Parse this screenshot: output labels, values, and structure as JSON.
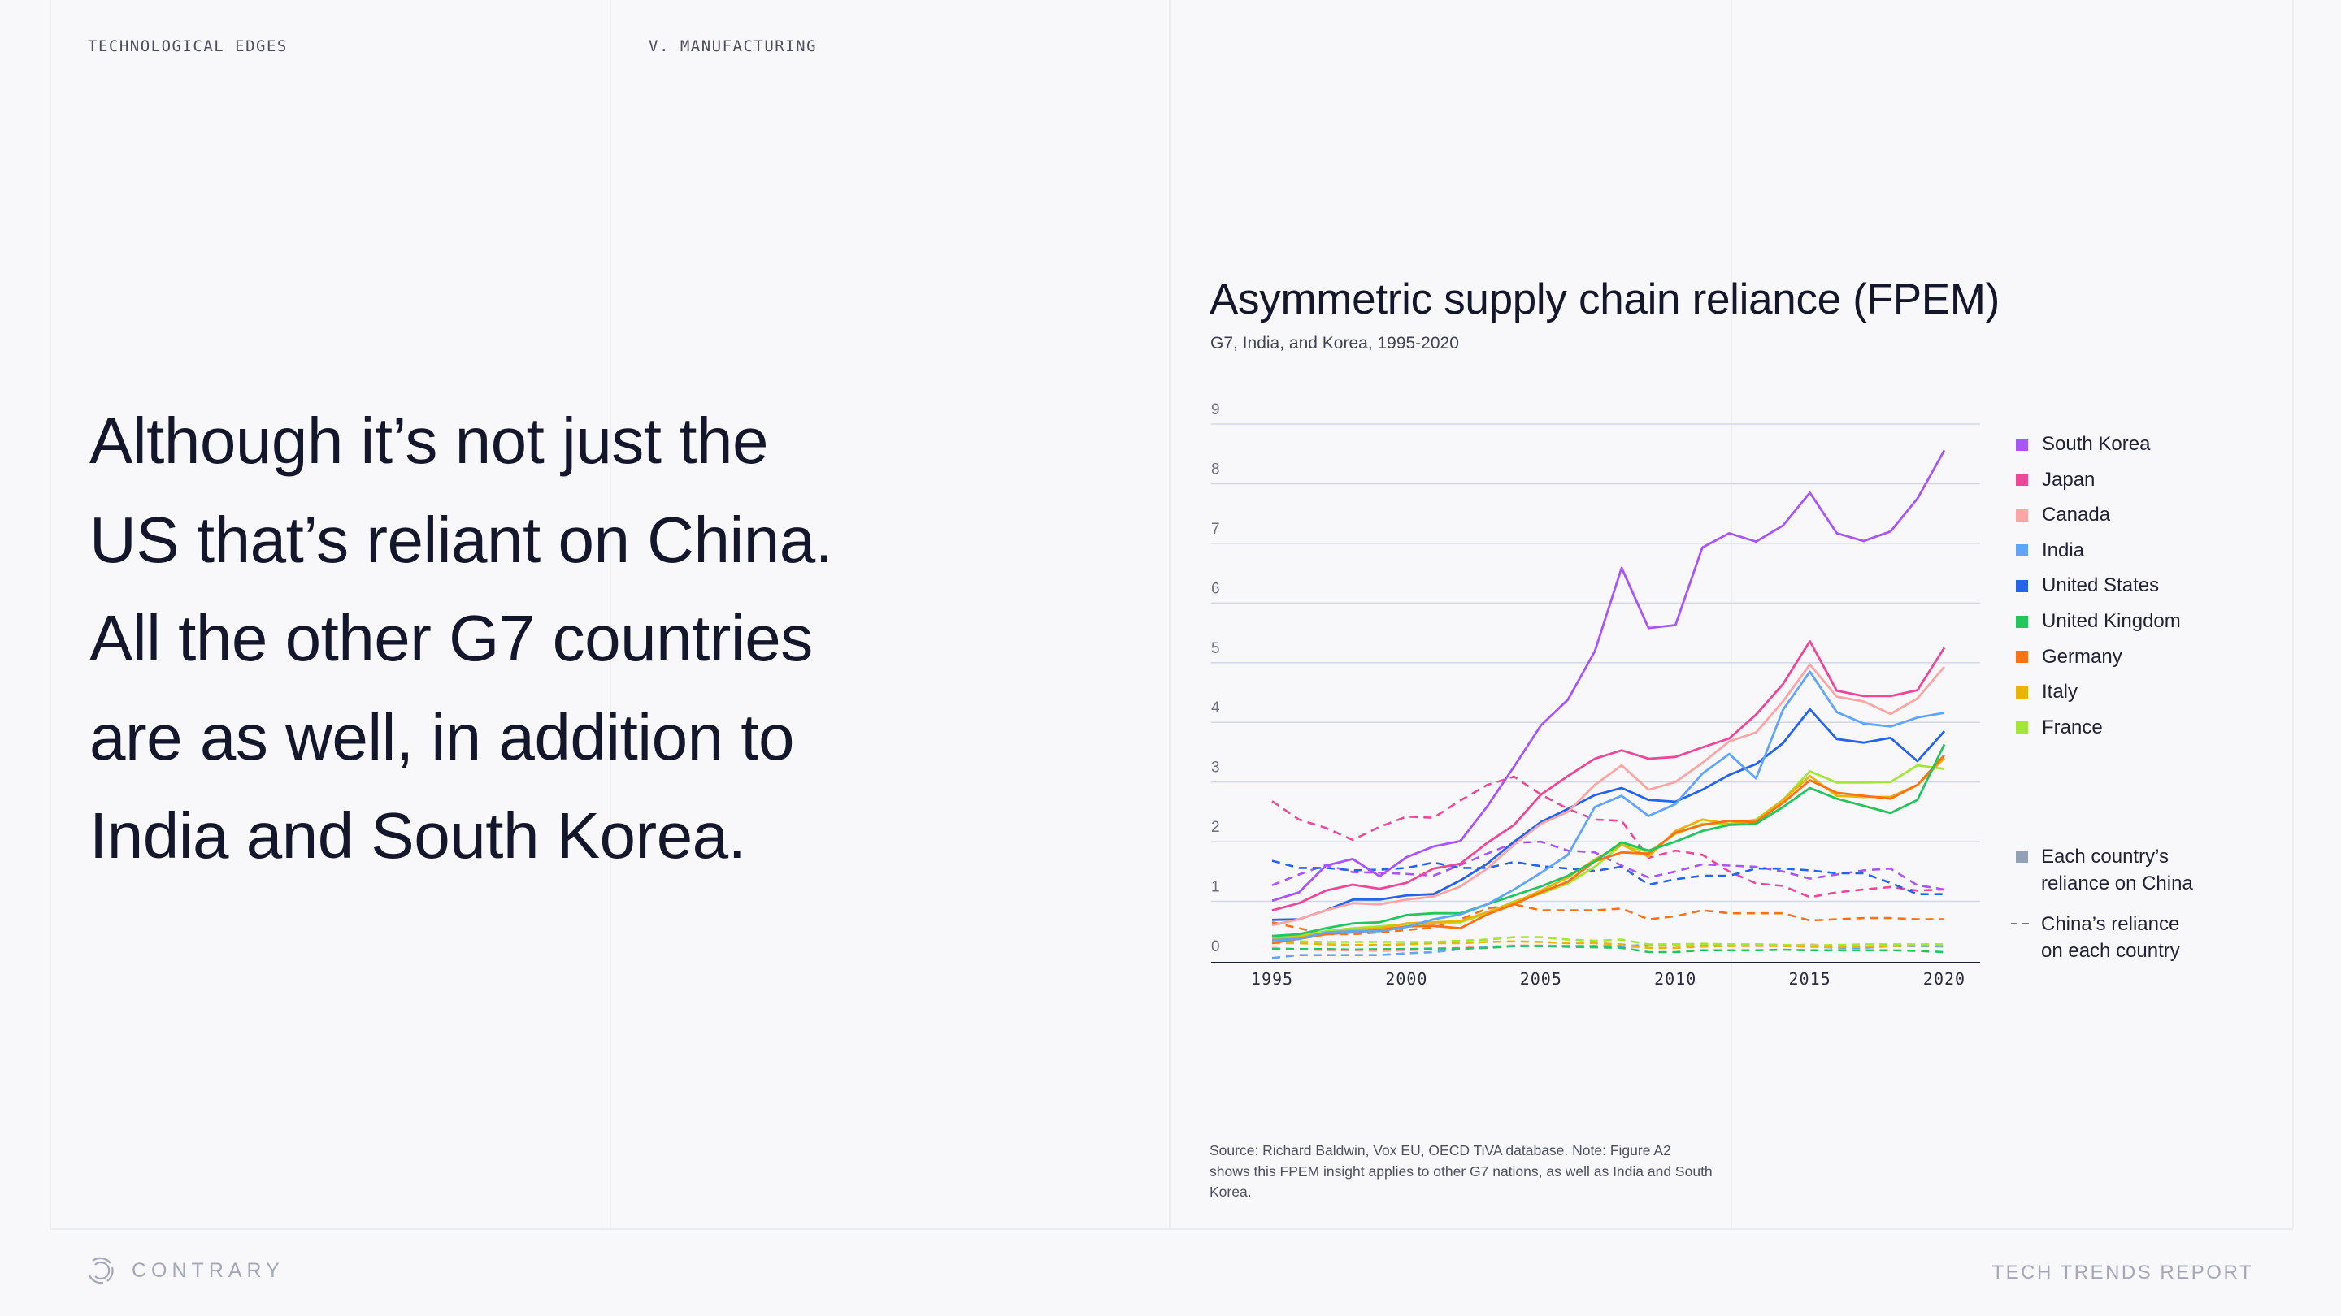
{
  "header": {
    "section_left": "TECHNOLOGICAL EDGES",
    "section_right": "V. MANUFACTURING"
  },
  "headline": {
    "lines": [
      "Although it’s not just the",
      "US that’s reliant on China.",
      "All the other G7 countries",
      "are as well, in addition to",
      "India and South Korea."
    ]
  },
  "footer": {
    "brand": "CONTRARY",
    "report": "TECH TRENDS REPORT"
  },
  "chart_data": {
    "type": "line",
    "title": "Asymmetric supply chain reliance (FPEM)",
    "subtitle": "G7, India, and Korea, 1995-2020",
    "xlabel": "",
    "ylabel": "",
    "x": [
      1995,
      1996,
      1997,
      1998,
      1999,
      2000,
      2001,
      2002,
      2003,
      2004,
      2005,
      2006,
      2007,
      2008,
      2009,
      2010,
      2011,
      2012,
      2013,
      2014,
      2015,
      2016,
      2017,
      2018,
      2019,
      2020
    ],
    "xticks": [
      "1995",
      "2000",
      "2005",
      "2010",
      "2015",
      "2020"
    ],
    "yticks": [
      "0",
      "1",
      "2",
      "3",
      "4",
      "5",
      "6",
      "7",
      "8",
      "9"
    ],
    "ylim": [
      0,
      9
    ],
    "xlim": [
      1995,
      2020
    ],
    "grid": true,
    "legend_position": "right",
    "legend": {
      "each_country_label": "Each country’s reliance on China",
      "each_country_lines": [
        "Each country’s",
        "reliance on China"
      ],
      "china_label": "China’s reliance on each country",
      "china_lines": [
        "China’s reliance",
        "on each country"
      ],
      "each_country_color": "#94a0b4"
    },
    "series": [
      {
        "name": "South Korea",
        "color": "#a855f7",
        "values": [
          1.01,
          1.15,
          1.6,
          1.71,
          1.42,
          1.74,
          1.92,
          2.01,
          2.59,
          3.26,
          3.95,
          4.38,
          5.19,
          6.59,
          5.58,
          5.63,
          6.93,
          7.17,
          7.03,
          7.3,
          7.85,
          7.17,
          7.04,
          7.2,
          7.75,
          8.56
        ],
        "china_values": [
          1.27,
          1.45,
          1.61,
          1.49,
          1.48,
          1.46,
          1.43,
          1.61,
          1.8,
          1.98,
          2.0,
          1.85,
          1.82,
          1.6,
          1.4,
          1.5,
          1.62,
          1.6,
          1.58,
          1.5,
          1.38,
          1.45,
          1.52,
          1.55,
          1.27,
          1.2
        ]
      },
      {
        "name": "Japan",
        "color": "#ec4899",
        "values": [
          0.85,
          0.97,
          1.18,
          1.28,
          1.21,
          1.31,
          1.55,
          1.63,
          1.98,
          2.28,
          2.79,
          3.1,
          3.39,
          3.53,
          3.39,
          3.42,
          3.58,
          3.73,
          4.13,
          4.64,
          5.36,
          4.53,
          4.44,
          4.44,
          4.54,
          5.25
        ],
        "china_values": [
          2.68,
          2.37,
          2.23,
          2.03,
          2.25,
          2.42,
          2.4,
          2.69,
          2.95,
          3.09,
          2.79,
          2.55,
          2.37,
          2.35,
          1.73,
          1.85,
          1.78,
          1.5,
          1.3,
          1.26,
          1.07,
          1.15,
          1.2,
          1.24,
          1.18,
          1.2
        ]
      },
      {
        "name": "Canada",
        "color": "#fca5a5",
        "values": [
          0.6,
          0.7,
          0.85,
          0.97,
          0.95,
          1.03,
          1.08,
          1.25,
          1.55,
          1.95,
          2.3,
          2.5,
          2.95,
          3.28,
          2.87,
          3.0,
          3.32,
          3.68,
          3.83,
          4.35,
          4.97,
          4.43,
          4.35,
          4.14,
          4.4,
          4.93
        ],
        "china_values": [
          0.22,
          0.2,
          0.18,
          0.18,
          0.17,
          0.18,
          0.2,
          0.22,
          0.24,
          0.26,
          0.26,
          0.25,
          0.25,
          0.25,
          0.22,
          0.22,
          0.24,
          0.25,
          0.25,
          0.25,
          0.28,
          0.24,
          0.22,
          0.25,
          0.25,
          0.24
        ]
      },
      {
        "name": "India",
        "color": "#60a5fa",
        "values": [
          0.35,
          0.37,
          0.48,
          0.5,
          0.5,
          0.57,
          0.7,
          0.78,
          0.95,
          1.2,
          1.48,
          1.78,
          2.58,
          2.77,
          2.43,
          2.63,
          3.14,
          3.47,
          3.06,
          4.21,
          4.85,
          4.17,
          3.98,
          3.93,
          4.08,
          4.16
        ],
        "china_values": [
          0.05,
          0.1,
          0.1,
          0.1,
          0.1,
          0.13,
          0.15,
          0.2,
          0.23,
          0.25,
          0.25,
          0.25,
          0.25,
          0.25,
          0.27,
          0.28,
          0.28,
          0.27,
          0.28,
          0.27,
          0.25,
          0.22,
          0.22,
          0.25,
          0.25,
          0.25
        ]
      },
      {
        "name": "United States",
        "color": "#2563eb",
        "values": [
          0.69,
          0.7,
          0.85,
          1.03,
          1.03,
          1.1,
          1.12,
          1.35,
          1.63,
          2.0,
          2.33,
          2.55,
          2.78,
          2.9,
          2.7,
          2.67,
          2.87,
          3.12,
          3.3,
          3.65,
          4.22,
          3.72,
          3.66,
          3.74,
          3.35,
          3.85
        ],
        "china_values": [
          1.68,
          1.56,
          1.56,
          1.52,
          1.53,
          1.56,
          1.65,
          1.56,
          1.56,
          1.66,
          1.59,
          1.55,
          1.51,
          1.58,
          1.28,
          1.37,
          1.43,
          1.43,
          1.55,
          1.55,
          1.52,
          1.47,
          1.47,
          1.31,
          1.12,
          1.12
        ]
      },
      {
        "name": "United Kingdom",
        "color": "#22c55e",
        "values": [
          0.42,
          0.45,
          0.55,
          0.63,
          0.65,
          0.77,
          0.8,
          0.8,
          0.95,
          1.1,
          1.25,
          1.43,
          1.67,
          1.99,
          1.85,
          2.0,
          2.18,
          2.28,
          2.3,
          2.58,
          2.9,
          2.72,
          2.6,
          2.48,
          2.7,
          3.63
        ],
        "china_values": [
          0.2,
          0.2,
          0.2,
          0.19,
          0.2,
          0.2,
          0.21,
          0.21,
          0.22,
          0.25,
          0.25,
          0.24,
          0.23,
          0.22,
          0.15,
          0.15,
          0.18,
          0.18,
          0.18,
          0.19,
          0.18,
          0.18,
          0.18,
          0.18,
          0.17,
          0.15
        ]
      },
      {
        "name": "Germany",
        "color": "#f97316",
        "values": [
          0.3,
          0.37,
          0.45,
          0.48,
          0.52,
          0.58,
          0.59,
          0.55,
          0.78,
          0.95,
          1.15,
          1.33,
          1.67,
          1.82,
          1.8,
          2.15,
          2.28,
          2.35,
          2.33,
          2.65,
          3.03,
          2.82,
          2.77,
          2.72,
          2.95,
          3.45
        ],
        "china_values": [
          0.65,
          0.55,
          0.45,
          0.45,
          0.48,
          0.52,
          0.56,
          0.7,
          0.88,
          0.95,
          0.85,
          0.85,
          0.85,
          0.88,
          0.7,
          0.75,
          0.85,
          0.8,
          0.8,
          0.8,
          0.68,
          0.7,
          0.72,
          0.72,
          0.7,
          0.7
        ]
      },
      {
        "name": "Italy",
        "color": "#eab308",
        "values": [
          0.38,
          0.4,
          0.47,
          0.52,
          0.55,
          0.63,
          0.65,
          0.67,
          0.82,
          0.98,
          1.18,
          1.4,
          1.7,
          1.95,
          1.75,
          2.18,
          2.37,
          2.3,
          2.35,
          2.7,
          3.1,
          2.77,
          2.75,
          2.75,
          2.95,
          3.4
        ],
        "china_values": [
          0.3,
          0.3,
          0.28,
          0.27,
          0.27,
          0.28,
          0.3,
          0.3,
          0.32,
          0.33,
          0.32,
          0.3,
          0.3,
          0.28,
          0.22,
          0.22,
          0.25,
          0.25,
          0.26,
          0.25,
          0.24,
          0.23,
          0.24,
          0.25,
          0.26,
          0.26
        ]
      },
      {
        "name": "France",
        "color": "#a3e635",
        "values": [
          0.4,
          0.42,
          0.5,
          0.55,
          0.58,
          0.62,
          0.63,
          0.65,
          0.8,
          1.0,
          1.13,
          1.3,
          1.58,
          1.95,
          1.83,
          2.13,
          2.3,
          2.3,
          2.37,
          2.7,
          3.18,
          2.99,
          2.99,
          3.0,
          3.28,
          3.22
        ],
        "china_values": [
          0.33,
          0.33,
          0.32,
          0.32,
          0.32,
          0.32,
          0.32,
          0.34,
          0.36,
          0.4,
          0.4,
          0.36,
          0.34,
          0.36,
          0.28,
          0.28,
          0.29,
          0.28,
          0.28,
          0.27,
          0.26,
          0.27,
          0.28,
          0.28,
          0.28,
          0.28
        ]
      }
    ],
    "source": "Source: Richard Baldwin, Vox EU, OECD TiVA database. Note: Figure A2 shows this FPEM insight applies to other G7 nations, as well as India and South Korea."
  }
}
